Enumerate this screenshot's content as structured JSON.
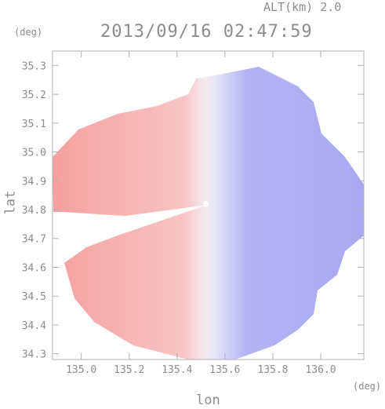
{
  "header": {
    "altitude_label": "ALT(km) 2.0",
    "datetime": "2013/09/16 02:47:59",
    "y_unit": "(deg)",
    "x_unit": "(deg)"
  },
  "chart_data": {
    "type": "heatmap",
    "title": "2013/09/16 02:47:59",
    "xlabel": "lon",
    "ylabel": "lat",
    "xlim": [
      134.88,
      136.18
    ],
    "ylim": [
      34.28,
      35.35
    ],
    "x_ticks": [
      "135.0",
      "135.2",
      "135.4",
      "135.6",
      "135.8",
      "136.0"
    ],
    "x_tick_values": [
      135.0,
      135.2,
      135.4,
      135.6,
      135.8,
      136.0
    ],
    "y_ticks": [
      "34.3",
      "34.4",
      "34.5",
      "34.6",
      "34.7",
      "34.8",
      "34.9",
      "35.0",
      "35.1",
      "35.2",
      "35.3"
    ],
    "y_tick_values": [
      34.3,
      34.4,
      34.5,
      34.6,
      34.7,
      34.8,
      34.9,
      35.0,
      35.1,
      35.2,
      35.3
    ],
    "grid": false,
    "radar_center": {
      "lon": 135.52,
      "lat": 34.82
    },
    "colors": {
      "positive": "#f4a3a3",
      "negative": "#9a9af2",
      "axis": "#b0b0b0"
    }
  }
}
